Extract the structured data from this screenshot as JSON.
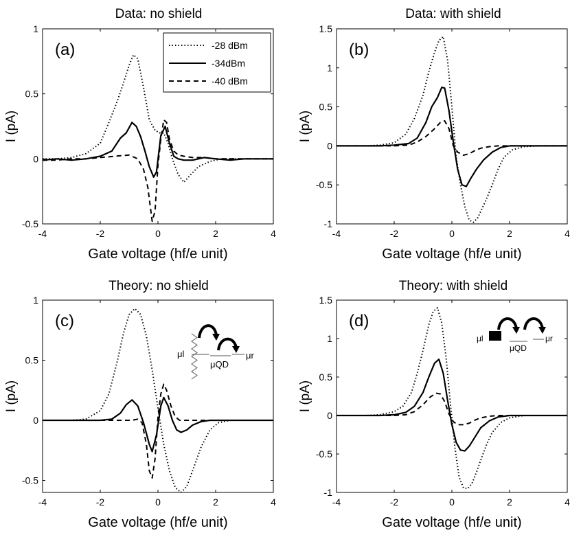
{
  "legend": {
    "entries": [
      "-28 dBm",
      "-34dBm",
      "-40 dBm"
    ]
  },
  "chart_data": [
    {
      "type": "line",
      "panel": "(a)",
      "title": "Data: no shield",
      "xlabel": "Gate voltage (hf/e unit)",
      "ylabel": "I (pA)",
      "xlim": [
        -4,
        4
      ],
      "ylim": [
        -0.5,
        1
      ],
      "xticks": [
        "-4",
        "-2",
        "0",
        "2",
        "4"
      ],
      "yticks": [
        "-0.5",
        "0",
        "0.5",
        "1"
      ],
      "legend_position": "top-right",
      "series": [
        {
          "name": "-28 dBm",
          "style": "dotted",
          "x": [
            -4,
            -3.5,
            -3,
            -2.5,
            -2,
            -1.7,
            -1.4,
            -1.2,
            -1,
            -0.85,
            -0.7,
            -0.5,
            -0.3,
            -0.1,
            0.05,
            0.2,
            0.35,
            0.5,
            0.7,
            0.9,
            1.1,
            1.4,
            1.8,
            2.2,
            2.6,
            3,
            3.5,
            4
          ],
          "y": [
            0,
            0,
            0.01,
            0.04,
            0.12,
            0.28,
            0.45,
            0.58,
            0.72,
            0.8,
            0.77,
            0.55,
            0.3,
            0.22,
            0.2,
            0.2,
            0.12,
            0.0,
            -0.12,
            -0.18,
            -0.13,
            -0.06,
            -0.02,
            0,
            0,
            0,
            0,
            0
          ]
        },
        {
          "name": "-34dBm",
          "style": "solid",
          "x": [
            -4,
            -3.5,
            -3,
            -2.5,
            -2,
            -1.6,
            -1.3,
            -1.1,
            -0.9,
            -0.75,
            -0.6,
            -0.45,
            -0.3,
            -0.15,
            -0.05,
            0.1,
            0.25,
            0.4,
            0.55,
            0.7,
            0.9,
            1.2,
            1.6,
            2,
            2.5,
            3,
            3.5,
            4
          ],
          "y": [
            -0.01,
            0,
            -0.01,
            0,
            0.02,
            0.06,
            0.16,
            0.2,
            0.28,
            0.25,
            0.17,
            0.06,
            -0.06,
            -0.14,
            -0.1,
            0.18,
            0.25,
            0.12,
            0.02,
            0,
            -0.01,
            -0.01,
            0.01,
            0,
            -0.01,
            0,
            0,
            0
          ]
        },
        {
          "name": "-40 dBm",
          "style": "dashed",
          "x": [
            -4,
            -3.5,
            -3,
            -2.5,
            -2,
            -1.5,
            -1,
            -0.7,
            -0.5,
            -0.35,
            -0.2,
            -0.1,
            0,
            0.1,
            0.2,
            0.3,
            0.4,
            0.55,
            0.7,
            0.9,
            1.2,
            1.6,
            2,
            2.5,
            3,
            3.5,
            4
          ],
          "y": [
            -0.01,
            -0.01,
            0,
            0,
            0.01,
            0.02,
            0.03,
            0.0,
            -0.08,
            -0.22,
            -0.48,
            -0.4,
            -0.05,
            0.15,
            0.3,
            0.28,
            0.15,
            0.06,
            0.03,
            0.02,
            0.01,
            0.01,
            0,
            0,
            0,
            0,
            0
          ]
        }
      ]
    },
    {
      "type": "line",
      "panel": "(b)",
      "title": "Data: with shield",
      "xlabel": "Gate voltage (hf/e unit)",
      "ylabel": "I (pA)",
      "xlim": [
        -4,
        4
      ],
      "ylim": [
        -1,
        1.5
      ],
      "xticks": [
        "-4",
        "-2",
        "0",
        "2",
        "4"
      ],
      "yticks": [
        "-1",
        "-0.5",
        "0",
        "0.5",
        "1",
        "1.5"
      ],
      "series": [
        {
          "name": "-28 dBm",
          "style": "dotted",
          "x": [
            -4,
            -3,
            -2.5,
            -2,
            -1.6,
            -1.3,
            -1.0,
            -0.8,
            -0.6,
            -0.45,
            -0.3,
            -0.15,
            0,
            0.15,
            0.3,
            0.45,
            0.6,
            0.75,
            0.9,
            1.05,
            1.2,
            1.4,
            1.6,
            1.8,
            2.1,
            2.5,
            3,
            4
          ],
          "y": [
            0,
            0,
            0.01,
            0.04,
            0.15,
            0.35,
            0.65,
            0.95,
            1.2,
            1.35,
            1.4,
            1.1,
            0.5,
            -0.15,
            -0.5,
            -0.78,
            -0.95,
            -0.98,
            -0.92,
            -0.8,
            -0.68,
            -0.5,
            -0.3,
            -0.15,
            -0.05,
            -0.01,
            0,
            0
          ]
        },
        {
          "name": "-34dBm",
          "style": "solid",
          "x": [
            -4,
            -3,
            -2.5,
            -2,
            -1.5,
            -1.2,
            -0.9,
            -0.7,
            -0.5,
            -0.35,
            -0.25,
            -0.1,
            0.05,
            0.2,
            0.35,
            0.5,
            0.65,
            0.85,
            1.1,
            1.4,
            1.7,
            2,
            2.5,
            3,
            4
          ],
          "y": [
            0,
            0,
            0,
            0.01,
            0.03,
            0.1,
            0.3,
            0.5,
            0.62,
            0.75,
            0.74,
            0.45,
            0.05,
            -0.3,
            -0.5,
            -0.52,
            -0.42,
            -0.3,
            -0.18,
            -0.08,
            -0.02,
            0,
            0,
            0,
            0
          ]
        },
        {
          "name": "-40 dBm",
          "style": "dashed",
          "x": [
            -4,
            -3,
            -2.5,
            -2,
            -1.5,
            -1.2,
            -0.9,
            -0.6,
            -0.4,
            -0.25,
            -0.1,
            0.05,
            0.2,
            0.4,
            0.6,
            0.8,
            1.0,
            1.3,
            1.6,
            2,
            2.5,
            3,
            4
          ],
          "y": [
            0,
            0,
            0,
            0,
            0.01,
            0.05,
            0.12,
            0.22,
            0.3,
            0.32,
            0.22,
            0.0,
            -0.08,
            -0.12,
            -0.1,
            -0.06,
            -0.03,
            -0.01,
            0,
            0,
            0,
            0,
            0
          ]
        }
      ]
    },
    {
      "type": "line",
      "panel": "(c)",
      "title": "Theory: no shield",
      "xlabel": "Gate voltage (hf/e unit)",
      "ylabel": "I (pA)",
      "xlim": [
        -4,
        4
      ],
      "ylim": [
        -0.6,
        1
      ],
      "xticks": [
        "-4",
        "-2",
        "0",
        "2",
        "4"
      ],
      "yticks": [
        "-0.5",
        "0",
        "0.5",
        "1"
      ],
      "inset_labels": [
        "μl",
        "μQD",
        "μr"
      ],
      "series": [
        {
          "name": "-28 dBm",
          "style": "dotted",
          "x": [
            -4,
            -3,
            -2.5,
            -2,
            -1.7,
            -1.4,
            -1.2,
            -1.0,
            -0.8,
            -0.6,
            -0.4,
            -0.2,
            0,
            0.2,
            0.4,
            0.6,
            0.8,
            1.0,
            1.2,
            1.5,
            1.8,
            2.1,
            2.5,
            3,
            4
          ],
          "y": [
            0,
            0,
            0.01,
            0.08,
            0.22,
            0.5,
            0.72,
            0.88,
            0.93,
            0.88,
            0.7,
            0.42,
            0.1,
            -0.2,
            -0.42,
            -0.56,
            -0.6,
            -0.55,
            -0.42,
            -0.22,
            -0.08,
            -0.02,
            0,
            0,
            0
          ]
        },
        {
          "name": "-34dBm",
          "style": "solid",
          "x": [
            -4,
            -2,
            -1.6,
            -1.3,
            -1.1,
            -0.9,
            -0.7,
            -0.5,
            -0.3,
            -0.2,
            -0.05,
            0.1,
            0.2,
            0.35,
            0.5,
            0.65,
            0.8,
            1.0,
            1.2,
            1.5,
            1.8,
            2.2,
            3,
            4
          ],
          "y": [
            0,
            0,
            0.01,
            0.06,
            0.13,
            0.17,
            0.12,
            -0.02,
            -0.2,
            -0.26,
            -0.12,
            0.12,
            0.19,
            0.12,
            0.0,
            -0.08,
            -0.1,
            -0.08,
            -0.04,
            -0.01,
            0,
            0,
            0,
            0
          ]
        },
        {
          "name": "-40 dBm",
          "style": "dashed",
          "x": [
            -4,
            -2,
            -1.2,
            -0.9,
            -0.7,
            -0.55,
            -0.4,
            -0.3,
            -0.2,
            -0.1,
            0,
            0.1,
            0.2,
            0.3,
            0.45,
            0.6,
            0.75,
            0.9,
            1.2,
            2,
            3,
            4
          ],
          "y": [
            0,
            0,
            0,
            0,
            0.01,
            -0.02,
            -0.2,
            -0.42,
            -0.48,
            -0.32,
            0.02,
            0.22,
            0.3,
            0.25,
            0.12,
            0.03,
            0,
            0,
            0,
            0,
            0,
            0
          ]
        }
      ]
    },
    {
      "type": "line",
      "panel": "(d)",
      "title": "Theory: with shield",
      "xlabel": "Gate voltage (hf/e unit)",
      "ylabel": "I (pA)",
      "xlim": [
        -4,
        4
      ],
      "ylim": [
        -1,
        1.5
      ],
      "xticks": [
        "-4",
        "-2",
        "0",
        "2",
        "4"
      ],
      "yticks": [
        "-1",
        "-0.5",
        "0",
        "0.5",
        "1",
        "1.5"
      ],
      "inset_labels": [
        "μl",
        "μQD",
        "μr"
      ],
      "series": [
        {
          "name": "-28 dBm",
          "style": "dotted",
          "x": [
            -4,
            -3,
            -2.5,
            -2,
            -1.7,
            -1.4,
            -1.2,
            -1.0,
            -0.8,
            -0.65,
            -0.5,
            -0.35,
            -0.2,
            -0.05,
            0.1,
            0.25,
            0.4,
            0.55,
            0.7,
            0.85,
            1.0,
            1.2,
            1.4,
            1.7,
            2.0,
            2.5,
            3,
            4
          ],
          "y": [
            0,
            0,
            0.01,
            0.05,
            0.12,
            0.3,
            0.55,
            0.85,
            1.18,
            1.35,
            1.4,
            1.2,
            0.75,
            0.15,
            -0.4,
            -0.8,
            -0.94,
            -0.95,
            -0.88,
            -0.74,
            -0.58,
            -0.38,
            -0.22,
            -0.09,
            -0.03,
            0,
            0,
            0
          ]
        },
        {
          "name": "-34dBm",
          "style": "solid",
          "x": [
            -4,
            -3,
            -2.5,
            -2,
            -1.6,
            -1.3,
            -1.0,
            -0.8,
            -0.6,
            -0.45,
            -0.3,
            -0.15,
            0,
            0.15,
            0.3,
            0.45,
            0.6,
            0.8,
            1.0,
            1.3,
            1.6,
            2,
            2.5,
            3,
            4
          ],
          "y": [
            0,
            0,
            0,
            0.01,
            0.04,
            0.12,
            0.3,
            0.5,
            0.68,
            0.73,
            0.55,
            0.2,
            -0.12,
            -0.35,
            -0.45,
            -0.46,
            -0.4,
            -0.28,
            -0.16,
            -0.07,
            -0.02,
            0,
            0,
            0,
            0
          ]
        },
        {
          "name": "-40 dBm",
          "style": "dashed",
          "x": [
            -4,
            -3,
            -2.5,
            -2,
            -1.6,
            -1.3,
            -1.0,
            -0.75,
            -0.55,
            -0.4,
            -0.25,
            -0.1,
            0.05,
            0.2,
            0.4,
            0.6,
            0.8,
            1.0,
            1.3,
            1.6,
            2,
            3,
            4
          ],
          "y": [
            0,
            0,
            0,
            0,
            0.01,
            0.05,
            0.14,
            0.24,
            0.29,
            0.28,
            0.18,
            0.02,
            -0.08,
            -0.12,
            -0.12,
            -0.1,
            -0.06,
            -0.03,
            -0.01,
            0,
            0,
            0,
            0
          ]
        }
      ]
    }
  ]
}
